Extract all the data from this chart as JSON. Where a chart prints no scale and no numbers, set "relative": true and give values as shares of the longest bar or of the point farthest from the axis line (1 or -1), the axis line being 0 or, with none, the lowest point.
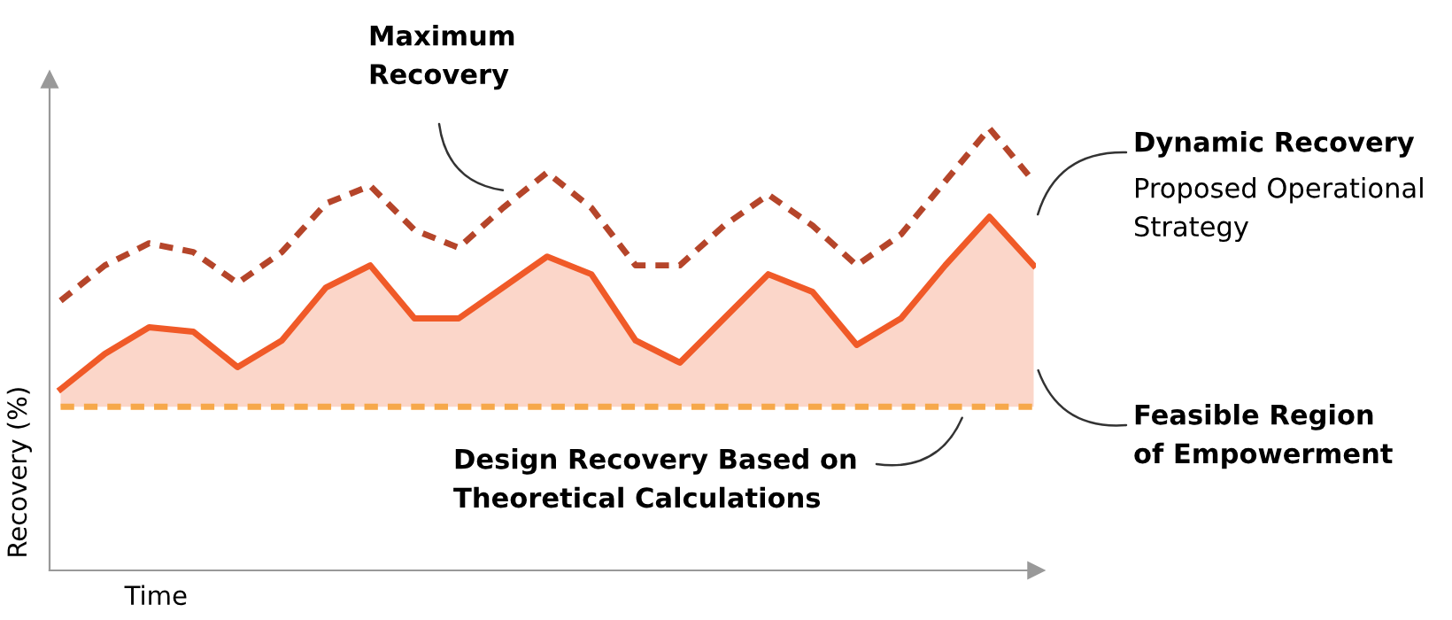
{
  "chart_data": {
    "type": "line",
    "relative": true,
    "xlabel": "Time",
    "ylabel": "Recovery (%)",
    "categories": [
      null,
      null,
      null,
      null,
      null,
      null,
      null,
      null,
      null,
      null,
      null,
      null,
      null,
      null,
      null,
      null,
      null,
      null,
      null,
      null,
      null,
      null,
      null
    ],
    "series": [
      {
        "color": "#b5452a",
        "line_style": "dashed",
        "values": [
          0.61,
          0.69,
          0.74,
          0.72,
          0.65,
          0.72,
          0.83,
          0.87,
          0.77,
          0.73,
          0.82,
          0.9,
          0.82,
          0.69,
          0.69,
          0.78,
          0.85,
          0.78,
          0.69,
          0.76,
          0.88,
          1.0,
          0.88
        ]
      },
      {
        "type": "area",
        "color": "#f05a28",
        "line_style": "solid",
        "values": [
          0.41,
          0.49,
          0.55,
          0.54,
          0.46,
          0.52,
          0.64,
          0.69,
          0.57,
          0.57,
          0.64,
          0.71,
          0.67,
          0.52,
          0.47,
          0.57,
          0.67,
          0.63,
          0.51,
          0.57,
          0.69,
          0.8,
          0.69
        ]
      },
      {
        "color": "#f6a84a",
        "line_style": "dashed",
        "values": [
          0.37,
          0.37,
          0.37,
          0.37,
          0.37,
          0.37,
          0.37,
          0.37,
          0.37,
          0.37,
          0.37,
          0.37,
          0.37,
          0.37,
          0.37,
          0.37,
          0.37,
          0.37,
          0.37,
          0.37,
          0.37,
          0.37,
          0.37
        ]
      }
    ],
    "annotations": [
      "Maximum\nRecovery",
      "Dynamic Recovery",
      "Proposed Operational\nStrategy",
      "Feasible Region\nof Empowerment",
      "Design Recovery Based on\nTheoretical Calculations"
    ]
  }
}
